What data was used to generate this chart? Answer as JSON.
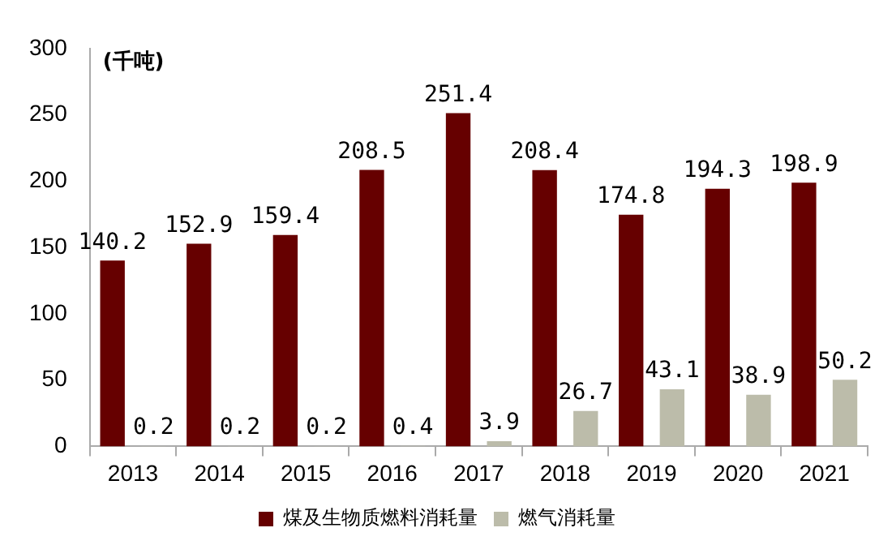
{
  "chart_data": {
    "type": "bar",
    "ylabel": "(千吨)",
    "categories": [
      "2013",
      "2014",
      "2015",
      "2016",
      "2017",
      "2018",
      "2019",
      "2020",
      "2021"
    ],
    "series": [
      {
        "name": "煤及生物质燃料消耗量",
        "color": "#660000",
        "values": [
          140.2,
          152.9,
          159.4,
          208.5,
          251.4,
          208.4,
          174.8,
          194.3,
          198.9
        ]
      },
      {
        "name": "燃气消耗量",
        "color": "#bcbcaa",
        "values": [
          0.2,
          0.2,
          0.2,
          0.4,
          3.9,
          26.7,
          43.1,
          38.9,
          50.2
        ]
      }
    ],
    "ylim": [
      0,
      300
    ],
    "yticks": [
      0,
      50,
      100,
      150,
      200,
      250,
      300
    ],
    "grid": false,
    "legend": "bottom",
    "data_labels": true
  }
}
